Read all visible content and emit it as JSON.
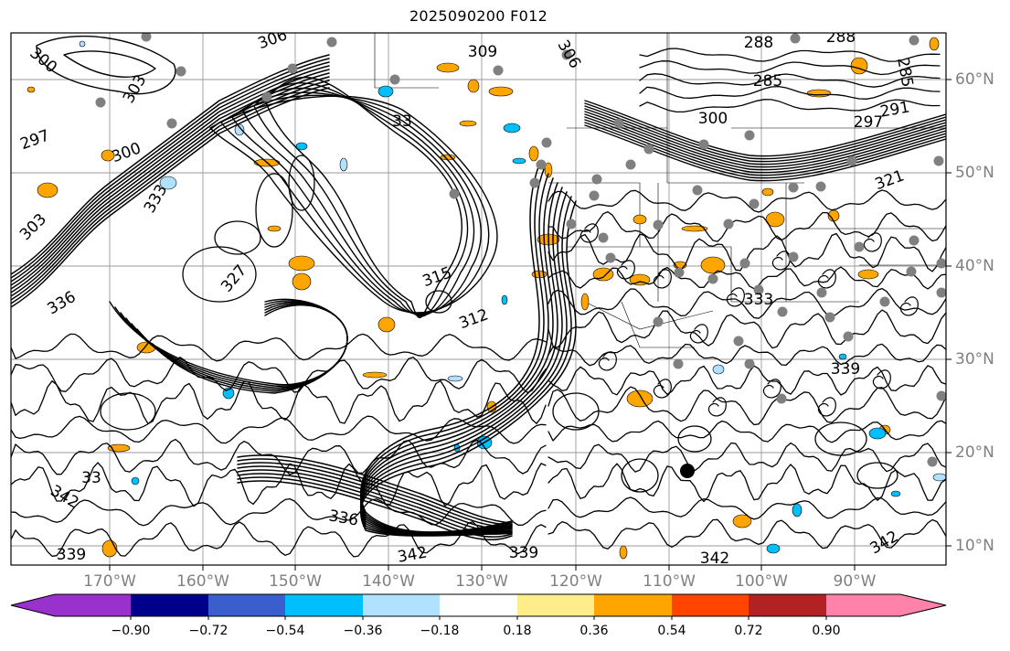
{
  "title": "2025090200 F012",
  "map": {
    "lon_labels": [
      "170°W",
      "160°W",
      "150°W",
      "140°W",
      "130°W",
      "120°W",
      "110°W",
      "100°W",
      "90°W"
    ],
    "lat_labels": [
      "60°N",
      "50°N",
      "40°N",
      "30°N",
      "20°N",
      "10°N"
    ],
    "contour_labels": [
      {
        "text": "300"
      },
      {
        "text": "306"
      },
      {
        "text": "309"
      },
      {
        "text": "306"
      },
      {
        "text": "288"
      },
      {
        "text": "288"
      },
      {
        "text": "285"
      },
      {
        "text": "285"
      },
      {
        "text": "303"
      },
      {
        "text": "297"
      },
      {
        "text": "300"
      },
      {
        "text": "291"
      },
      {
        "text": "297"
      },
      {
        "text": "300"
      },
      {
        "text": "303"
      },
      {
        "text": "333"
      },
      {
        "text": "321"
      },
      {
        "text": "315"
      },
      {
        "text": "312"
      },
      {
        "text": "333"
      },
      {
        "text": "336"
      },
      {
        "text": "336"
      },
      {
        "text": "342"
      },
      {
        "text": "339"
      },
      {
        "text": "342"
      },
      {
        "text": "339"
      },
      {
        "text": "342"
      },
      {
        "text": "342"
      },
      {
        "text": "339"
      },
      {
        "text": "33"
      },
      {
        "text": "327"
      },
      {
        "text": "33"
      }
    ]
  },
  "colorbar": {
    "colors": [
      "#9932cc",
      "#00008b",
      "#3a5fcd",
      "#00bfff",
      "#b0e2ff",
      "#ffffff",
      "#ffec8b",
      "#ffa500",
      "#ff4500",
      "#b22222",
      "#ff82ab"
    ],
    "ticks": [
      "−0.90",
      "−0.72",
      "−0.54",
      "−0.36",
      "−0.18",
      "0.18",
      "0.36",
      "0.54",
      "0.72",
      "0.90"
    ]
  }
}
